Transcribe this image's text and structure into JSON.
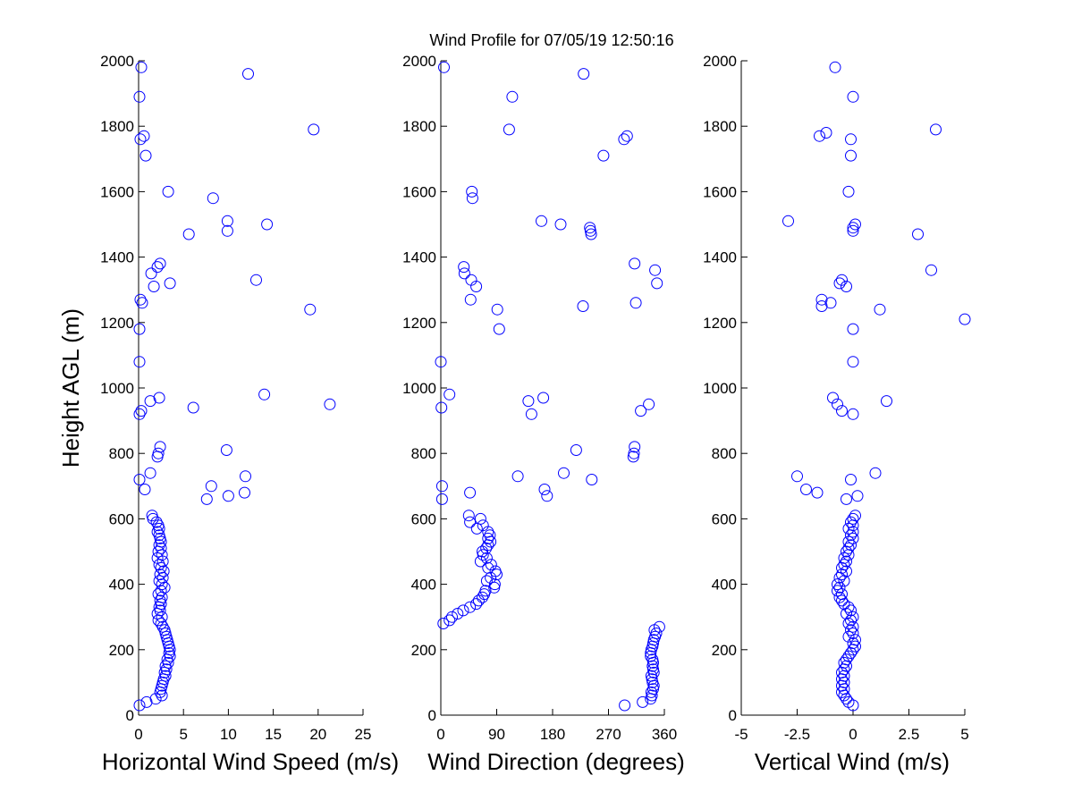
{
  "title": "Wind Profile for  07/05/19 12:50:16",
  "colors": {
    "marker": "#0000ff",
    "axis": "#000000",
    "background": "#ffffff"
  },
  "chart_data": [
    {
      "type": "scatter",
      "xlabel": "Horizontal Wind Speed (m/s)",
      "ylabel": "Height AGL (m)",
      "xlim": [
        0,
        25
      ],
      "ylim": [
        0,
        2000
      ],
      "xticks": [
        "0",
        "5",
        "10",
        "15",
        "20",
        "25"
      ],
      "xtick_values": [
        0,
        5,
        10,
        15,
        20,
        25
      ],
      "yticks": [
        "0",
        "200",
        "400",
        "600",
        "800",
        "1000",
        "1200",
        "1400",
        "1600",
        "1800",
        "2000"
      ],
      "ytick_values": [
        0,
        200,
        400,
        600,
        800,
        1000,
        1200,
        1400,
        1600,
        1800,
        2000
      ],
      "grid": false,
      "points": [
        [
          0.3,
          1980
        ],
        [
          12.2,
          1960
        ],
        [
          0.1,
          1890
        ],
        [
          19.5,
          1790
        ],
        [
          0.6,
          1770
        ],
        [
          0.2,
          1760
        ],
        [
          0.8,
          1710
        ],
        [
          3.3,
          1600
        ],
        [
          8.3,
          1580
        ],
        [
          9.9,
          1510
        ],
        [
          14.3,
          1500
        ],
        [
          9.9,
          1480
        ],
        [
          5.6,
          1470
        ],
        [
          2.4,
          1380
        ],
        [
          2.1,
          1370
        ],
        [
          1.4,
          1350
        ],
        [
          13.1,
          1330
        ],
        [
          3.5,
          1320
        ],
        [
          1.7,
          1310
        ],
        [
          0.2,
          1270
        ],
        [
          0.4,
          1260
        ],
        [
          19.1,
          1240
        ],
        [
          0.1,
          1180
        ],
        [
          0.1,
          1080
        ],
        [
          14.0,
          980
        ],
        [
          2.3,
          970
        ],
        [
          1.3,
          960
        ],
        [
          21.3,
          950
        ],
        [
          6.1,
          940
        ],
        [
          0.3,
          930
        ],
        [
          0.1,
          920
        ],
        [
          2.4,
          820
        ],
        [
          9.8,
          810
        ],
        [
          2.2,
          800
        ],
        [
          2.1,
          790
        ],
        [
          1.3,
          740
        ],
        [
          11.9,
          730
        ],
        [
          0.1,
          720
        ],
        [
          8.1,
          700
        ],
        [
          0.7,
          690
        ],
        [
          11.8,
          680
        ],
        [
          10.0,
          670
        ],
        [
          7.6,
          660
        ],
        [
          1.5,
          610
        ],
        [
          1.6,
          600
        ],
        [
          2.0,
          590
        ],
        [
          2.2,
          580
        ],
        [
          2.3,
          570
        ],
        [
          2.1,
          560
        ],
        [
          2.3,
          550
        ],
        [
          2.4,
          540
        ],
        [
          2.5,
          530
        ],
        [
          2.3,
          520
        ],
        [
          2.5,
          510
        ],
        [
          2.2,
          500
        ],
        [
          2.6,
          490
        ],
        [
          2.1,
          480
        ],
        [
          2.7,
          470
        ],
        [
          2.3,
          460
        ],
        [
          2.5,
          450
        ],
        [
          2.8,
          440
        ],
        [
          2.4,
          430
        ],
        [
          2.7,
          420
        ],
        [
          2.3,
          410
        ],
        [
          2.6,
          400
        ],
        [
          2.9,
          390
        ],
        [
          2.5,
          380
        ],
        [
          2.2,
          370
        ],
        [
          2.6,
          360
        ],
        [
          2.4,
          350
        ],
        [
          2.5,
          340
        ],
        [
          2.3,
          330
        ],
        [
          2.4,
          320
        ],
        [
          2.1,
          310
        ],
        [
          2.6,
          300
        ],
        [
          2.2,
          290
        ],
        [
          2.5,
          280
        ],
        [
          2.7,
          270
        ],
        [
          2.9,
          260
        ],
        [
          3.0,
          250
        ],
        [
          3.1,
          240
        ],
        [
          3.2,
          230
        ],
        [
          3.3,
          220
        ],
        [
          3.4,
          210
        ],
        [
          3.5,
          200
        ],
        [
          3.4,
          190
        ],
        [
          3.5,
          180
        ],
        [
          3.2,
          170
        ],
        [
          3.3,
          160
        ],
        [
          3.0,
          150
        ],
        [
          3.1,
          140
        ],
        [
          2.9,
          130
        ],
        [
          3.0,
          120
        ],
        [
          2.8,
          110
        ],
        [
          2.7,
          100
        ],
        [
          2.6,
          90
        ],
        [
          2.5,
          80
        ],
        [
          2.4,
          70
        ],
        [
          2.6,
          60
        ],
        [
          1.9,
          50
        ],
        [
          0.9,
          40
        ],
        [
          0.1,
          30
        ]
      ]
    },
    {
      "type": "scatter",
      "xlabel": "Wind Direction (degrees)",
      "ylabel": "",
      "xlim": [
        0,
        360
      ],
      "ylim": [
        0,
        2000
      ],
      "xticks": [
        "0",
        "90",
        "180",
        "270",
        "360"
      ],
      "xtick_values": [
        0,
        90,
        180,
        270,
        360
      ],
      "yticks": [
        "0",
        "200",
        "400",
        "600",
        "800",
        "1000",
        "1200",
        "1400",
        "1600",
        "1800",
        "2000"
      ],
      "ytick_values": [
        0,
        200,
        400,
        600,
        800,
        1000,
        1200,
        1400,
        1600,
        1800,
        2000
      ],
      "grid": false,
      "points": [
        [
          5,
          1980
        ],
        [
          230,
          1960
        ],
        [
          115,
          1890
        ],
        [
          110,
          1790
        ],
        [
          300,
          1770
        ],
        [
          295,
          1760
        ],
        [
          262,
          1710
        ],
        [
          50,
          1600
        ],
        [
          51,
          1580
        ],
        [
          162,
          1510
        ],
        [
          193,
          1500
        ],
        [
          240,
          1490
        ],
        [
          241,
          1480
        ],
        [
          242,
          1470
        ],
        [
          312,
          1380
        ],
        [
          37,
          1370
        ],
        [
          38,
          1350
        ],
        [
          345,
          1360
        ],
        [
          49,
          1330
        ],
        [
          348,
          1320
        ],
        [
          57,
          1310
        ],
        [
          48,
          1270
        ],
        [
          314,
          1260
        ],
        [
          229,
          1250
        ],
        [
          91,
          1240
        ],
        [
          94,
          1180
        ],
        [
          0,
          1080
        ],
        [
          14,
          980
        ],
        [
          165,
          970
        ],
        [
          141,
          960
        ],
        [
          335,
          950
        ],
        [
          1,
          940
        ],
        [
          146,
          920
        ],
        [
          322,
          930
        ],
        [
          312,
          820
        ],
        [
          311,
          800
        ],
        [
          310,
          790
        ],
        [
          218,
          810
        ],
        [
          198,
          740
        ],
        [
          124,
          730
        ],
        [
          243,
          720
        ],
        [
          2,
          700
        ],
        [
          167,
          690
        ],
        [
          47,
          680
        ],
        [
          171,
          670
        ],
        [
          2,
          660
        ],
        [
          45,
          610
        ],
        [
          64,
          600
        ],
        [
          47,
          590
        ],
        [
          68,
          580
        ],
        [
          58,
          570
        ],
        [
          76,
          560
        ],
        [
          79,
          550
        ],
        [
          76,
          540
        ],
        [
          80,
          530
        ],
        [
          76,
          520
        ],
        [
          73,
          510
        ],
        [
          67,
          500
        ],
        [
          68,
          490
        ],
        [
          74,
          480
        ],
        [
          64,
          470
        ],
        [
          81,
          460
        ],
        [
          76,
          450
        ],
        [
          88,
          440
        ],
        [
          90,
          430
        ],
        [
          80,
          420
        ],
        [
          74,
          410
        ],
        [
          87,
          400
        ],
        [
          86,
          390
        ],
        [
          72,
          380
        ],
        [
          70,
          370
        ],
        [
          67,
          360
        ],
        [
          61,
          350
        ],
        [
          57,
          340
        ],
        [
          47,
          330
        ],
        [
          36,
          320
        ],
        [
          27,
          310
        ],
        [
          18,
          300
        ],
        [
          14,
          290
        ],
        [
          4,
          280
        ],
        [
          352,
          270
        ],
        [
          344,
          260
        ],
        [
          347,
          250
        ],
        [
          345,
          240
        ],
        [
          343,
          230
        ],
        [
          342,
          220
        ],
        [
          341,
          210
        ],
        [
          339,
          200
        ],
        [
          338,
          190
        ],
        [
          338,
          180
        ],
        [
          341,
          170
        ],
        [
          342,
          160
        ],
        [
          341,
          150
        ],
        [
          342,
          140
        ],
        [
          343,
          130
        ],
        [
          339,
          120
        ],
        [
          340,
          110
        ],
        [
          341,
          100
        ],
        [
          343,
          90
        ],
        [
          342,
          80
        ],
        [
          339,
          70
        ],
        [
          340,
          60
        ],
        [
          338,
          50
        ],
        [
          325,
          40
        ],
        [
          296,
          30
        ]
      ]
    },
    {
      "type": "scatter",
      "xlabel": "Vertical Wind (m/s)",
      "ylabel": "",
      "xlim": [
        -5,
        5
      ],
      "ylim": [
        0,
        2000
      ],
      "xticks": [
        "-5",
        "-2.5",
        "0",
        "2.5",
        "5"
      ],
      "xtick_values": [
        -5,
        -2.5,
        0,
        2.5,
        5
      ],
      "yticks": [
        "0",
        "200",
        "400",
        "600",
        "800",
        "1000",
        "1200",
        "1400",
        "1600",
        "1800",
        "2000"
      ],
      "ytick_values": [
        0,
        200,
        400,
        600,
        800,
        1000,
        1200,
        1400,
        1600,
        1800,
        2000
      ],
      "grid": false,
      "points": [
        [
          -0.8,
          1980
        ],
        [
          0.0,
          1890
        ],
        [
          3.7,
          1790
        ],
        [
          -1.2,
          1780
        ],
        [
          -1.5,
          1770
        ],
        [
          -0.1,
          1760
        ],
        [
          -0.1,
          1710
        ],
        [
          -0.2,
          1600
        ],
        [
          -2.9,
          1510
        ],
        [
          0.1,
          1500
        ],
        [
          0.0,
          1490
        ],
        [
          0.0,
          1480
        ],
        [
          2.9,
          1470
        ],
        [
          3.5,
          1360
        ],
        [
          -0.5,
          1330
        ],
        [
          -0.6,
          1320
        ],
        [
          -0.3,
          1310
        ],
        [
          -1.4,
          1270
        ],
        [
          -1.0,
          1260
        ],
        [
          -1.4,
          1250
        ],
        [
          1.2,
          1240
        ],
        [
          5.0,
          1210
        ],
        [
          0.0,
          1180
        ],
        [
          0.0,
          1080
        ],
        [
          -0.9,
          970
        ],
        [
          -0.7,
          950
        ],
        [
          1.5,
          960
        ],
        [
          -0.5,
          930
        ],
        [
          0.0,
          920
        ],
        [
          -2.5,
          730
        ],
        [
          1.0,
          740
        ],
        [
          -0.1,
          720
        ],
        [
          -2.1,
          690
        ],
        [
          -1.6,
          680
        ],
        [
          0.2,
          670
        ],
        [
          -0.3,
          660
        ],
        [
          0.1,
          610
        ],
        [
          0.0,
          600
        ],
        [
          -0.1,
          590
        ],
        [
          0.0,
          580
        ],
        [
          -0.2,
          570
        ],
        [
          0.0,
          560
        ],
        [
          -0.1,
          550
        ],
        [
          0.0,
          540
        ],
        [
          -0.2,
          530
        ],
        [
          -0.1,
          520
        ],
        [
          -0.2,
          510
        ],
        [
          -0.3,
          500
        ],
        [
          -0.2,
          490
        ],
        [
          -0.4,
          480
        ],
        [
          -0.3,
          470
        ],
        [
          -0.4,
          460
        ],
        [
          -0.5,
          450
        ],
        [
          -0.3,
          440
        ],
        [
          -0.5,
          430
        ],
        [
          -0.6,
          420
        ],
        [
          -0.4,
          410
        ],
        [
          -0.7,
          400
        ],
        [
          -0.6,
          390
        ],
        [
          -0.7,
          380
        ],
        [
          -0.5,
          370
        ],
        [
          -0.6,
          360
        ],
        [
          -0.5,
          350
        ],
        [
          -0.4,
          340
        ],
        [
          -0.2,
          330
        ],
        [
          -0.1,
          320
        ],
        [
          -0.3,
          310
        ],
        [
          0.0,
          300
        ],
        [
          -0.1,
          290
        ],
        [
          -0.2,
          280
        ],
        [
          0.0,
          270
        ],
        [
          -0.1,
          260
        ],
        [
          0.0,
          250
        ],
        [
          -0.2,
          240
        ],
        [
          0.1,
          230
        ],
        [
          0.0,
          220
        ],
        [
          0.1,
          210
        ],
        [
          0.0,
          200
        ],
        [
          -0.1,
          190
        ],
        [
          -0.2,
          180
        ],
        [
          -0.3,
          170
        ],
        [
          -0.4,
          160
        ],
        [
          -0.3,
          150
        ],
        [
          -0.4,
          140
        ],
        [
          -0.5,
          130
        ],
        [
          -0.4,
          120
        ],
        [
          -0.5,
          110
        ],
        [
          -0.4,
          100
        ],
        [
          -0.5,
          90
        ],
        [
          -0.4,
          80
        ],
        [
          -0.5,
          70
        ],
        [
          -0.4,
          60
        ],
        [
          -0.3,
          50
        ],
        [
          -0.2,
          40
        ],
        [
          0.0,
          30
        ]
      ]
    }
  ]
}
